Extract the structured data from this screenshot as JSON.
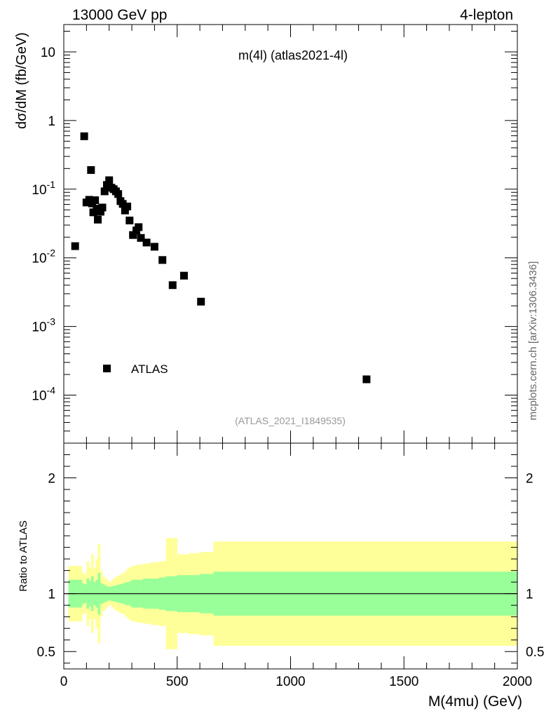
{
  "header": {
    "left": "13000 GeV pp",
    "right": "4-lepton"
  },
  "side_label": "mcplots.cern.ch [arXiv:1306.3436]",
  "chart_data": [
    {
      "type": "scatter",
      "panel": "main",
      "title": "m(4l) (atlas2021-4l)",
      "ylabel": "dσ/dM (fb/GeV)",
      "yscale": "log",
      "ylim": [
        2e-05,
        25
      ],
      "xlim": [
        0,
        2000
      ],
      "y_ticks": [
        {
          "label": "10",
          "value": 10
        },
        {
          "label": "1",
          "value": 1
        },
        {
          "label": "10^-1",
          "value": 0.1
        },
        {
          "label": "10^-2",
          "value": 0.01
        },
        {
          "label": "10^-3",
          "value": 0.001
        },
        {
          "label": "10^-4",
          "value": 0.0001
        }
      ],
      "legend": {
        "label": "ATLAS",
        "position": "bottom-left"
      },
      "footnote": "(ATLAS_2021_I1849535)",
      "series": [
        {
          "name": "ATLAS",
          "points": [
            {
              "x": 50,
              "y": 0.0148
            },
            {
              "x": 90,
              "y": 0.59
            },
            {
              "x": 100,
              "y": 0.064
            },
            {
              "x": 112,
              "y": 0.07
            },
            {
              "x": 120,
              "y": 0.19
            },
            {
              "x": 125,
              "y": 0.062
            },
            {
              "x": 130,
              "y": 0.046
            },
            {
              "x": 138,
              "y": 0.069
            },
            {
              "x": 145,
              "y": 0.052
            },
            {
              "x": 150,
              "y": 0.036
            },
            {
              "x": 162,
              "y": 0.047
            },
            {
              "x": 170,
              "y": 0.054
            },
            {
              "x": 180,
              "y": 0.093
            },
            {
              "x": 190,
              "y": 0.115
            },
            {
              "x": 200,
              "y": 0.135
            },
            {
              "x": 210,
              "y": 0.105
            },
            {
              "x": 220,
              "y": 0.1
            },
            {
              "x": 230,
              "y": 0.093
            },
            {
              "x": 240,
              "y": 0.085
            },
            {
              "x": 250,
              "y": 0.067
            },
            {
              "x": 260,
              "y": 0.061
            },
            {
              "x": 270,
              "y": 0.049
            },
            {
              "x": 280,
              "y": 0.056
            },
            {
              "x": 290,
              "y": 0.035
            },
            {
              "x": 305,
              "y": 0.0215
            },
            {
              "x": 320,
              "y": 0.025
            },
            {
              "x": 330,
              "y": 0.028
            },
            {
              "x": 340,
              "y": 0.0195
            },
            {
              "x": 365,
              "y": 0.0167
            },
            {
              "x": 400,
              "y": 0.0145
            },
            {
              "x": 435,
              "y": 0.0093
            },
            {
              "x": 480,
              "y": 0.004
            },
            {
              "x": 530,
              "y": 0.0055
            },
            {
              "x": 605,
              "y": 0.0023
            },
            {
              "x": 1335,
              "y": 0.00017
            }
          ]
        }
      ]
    },
    {
      "type": "area",
      "panel": "ratio",
      "ylabel": "Ratio to ATLAS",
      "xlabel": "M(4mu) (GeV)",
      "xlim": [
        0,
        2000
      ],
      "ylim": [
        0.35,
        2.3
      ],
      "x_ticks": [
        {
          "label": "0",
          "value": 0
        },
        {
          "label": "500",
          "value": 500
        },
        {
          "label": "1000",
          "value": 1000
        },
        {
          "label": "1500",
          "value": 1500
        },
        {
          "label": "2000",
          "value": 2000
        }
      ],
      "y_ticks": [
        {
          "label": "2",
          "value": 2
        },
        {
          "label": "1",
          "value": 1
        },
        {
          "label": "0.5",
          "value": 0.5
        }
      ],
      "reference_line": 1,
      "colors": {
        "stat": "#99ff99",
        "total": "#ffff99"
      },
      "bands": [
        {
          "x0": 20,
          "x1": 80,
          "stat": 0.12,
          "total": 0.24
        },
        {
          "x0": 80,
          "x1": 90,
          "stat": 0.09,
          "total": 0.18
        },
        {
          "x0": 90,
          "x1": 100,
          "stat": 0.08,
          "total": 0.17
        },
        {
          "x0": 100,
          "x1": 110,
          "stat": 0.13,
          "total": 0.28
        },
        {
          "x0": 110,
          "x1": 120,
          "stat": 0.11,
          "total": 0.22
        },
        {
          "x0": 120,
          "x1": 130,
          "stat": 0.15,
          "total": 0.34
        },
        {
          "x0": 130,
          "x1": 140,
          "stat": 0.1,
          "total": 0.22
        },
        {
          "x0": 140,
          "x1": 150,
          "stat": 0.12,
          "total": 0.3
        },
        {
          "x0": 150,
          "x1": 160,
          "stat": 0.18,
          "total": 0.43
        },
        {
          "x0": 160,
          "x1": 170,
          "stat": 0.09,
          "total": 0.2
        },
        {
          "x0": 170,
          "x1": 180,
          "stat": 0.08,
          "total": 0.15
        },
        {
          "x0": 180,
          "x1": 190,
          "stat": 0.07,
          "total": 0.13
        },
        {
          "x0": 190,
          "x1": 200,
          "stat": 0.06,
          "total": 0.11
        },
        {
          "x0": 200,
          "x1": 210,
          "stat": 0.06,
          "total": 0.1
        },
        {
          "x0": 210,
          "x1": 220,
          "stat": 0.065,
          "total": 0.12
        },
        {
          "x0": 220,
          "x1": 230,
          "stat": 0.07,
          "total": 0.14
        },
        {
          "x0": 230,
          "x1": 240,
          "stat": 0.075,
          "total": 0.15
        },
        {
          "x0": 240,
          "x1": 250,
          "stat": 0.08,
          "total": 0.16
        },
        {
          "x0": 250,
          "x1": 260,
          "stat": 0.085,
          "total": 0.17
        },
        {
          "x0": 260,
          "x1": 270,
          "stat": 0.09,
          "total": 0.18
        },
        {
          "x0": 270,
          "x1": 280,
          "stat": 0.1,
          "total": 0.2
        },
        {
          "x0": 280,
          "x1": 290,
          "stat": 0.1,
          "total": 0.22
        },
        {
          "x0": 290,
          "x1": 300,
          "stat": 0.11,
          "total": 0.23
        },
        {
          "x0": 300,
          "x1": 320,
          "stat": 0.12,
          "total": 0.24
        },
        {
          "x0": 320,
          "x1": 350,
          "stat": 0.12,
          "total": 0.25
        },
        {
          "x0": 350,
          "x1": 380,
          "stat": 0.13,
          "total": 0.26
        },
        {
          "x0": 380,
          "x1": 420,
          "stat": 0.13,
          "total": 0.27
        },
        {
          "x0": 420,
          "x1": 450,
          "stat": 0.14,
          "total": 0.28
        },
        {
          "x0": 450,
          "x1": 500,
          "stat": 0.15,
          "total": 0.48
        },
        {
          "x0": 500,
          "x1": 550,
          "stat": 0.16,
          "total": 0.34
        },
        {
          "x0": 550,
          "x1": 600,
          "stat": 0.16,
          "total": 0.35
        },
        {
          "x0": 600,
          "x1": 660,
          "stat": 0.17,
          "total": 0.36
        },
        {
          "x0": 660,
          "x1": 2000,
          "stat": 0.19,
          "total": 0.45
        }
      ]
    }
  ]
}
